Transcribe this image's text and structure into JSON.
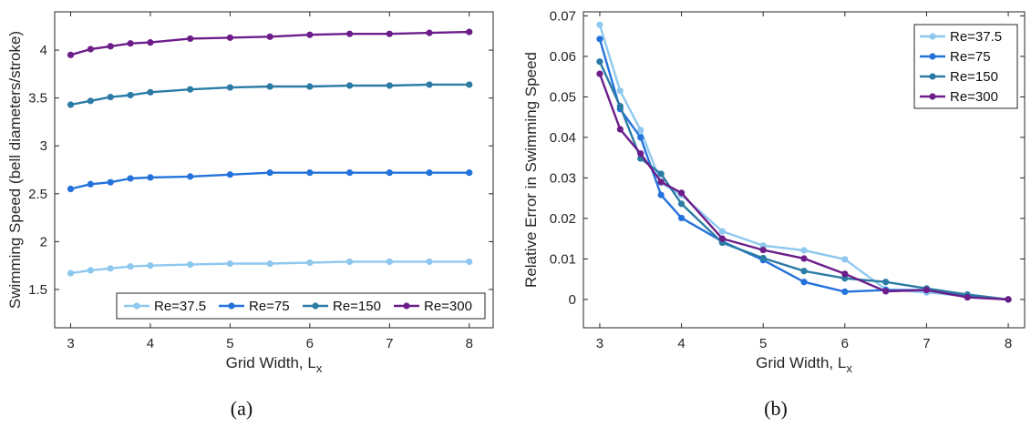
{
  "chart_data": [
    {
      "type": "line",
      "panel_label": "(a)",
      "xlabel": "Grid Width, L",
      "xlabel_sub": "x",
      "ylabel": "Swimming Speed (bell diameters/stroke)",
      "xlim": [
        2.8,
        8.3
      ],
      "ylim": [
        1.1,
        4.4
      ],
      "xticks": [
        3,
        4,
        5,
        6,
        7,
        8
      ],
      "yticks": [
        1.5,
        2,
        2.5,
        3,
        3.5,
        4
      ],
      "legend_position": "bottom",
      "x": [
        3,
        3.25,
        3.5,
        3.75,
        4,
        4.5,
        5,
        5.5,
        6,
        6.5,
        7,
        7.5,
        8
      ],
      "series": [
        {
          "name": "Re=37.5",
          "color": "#8ec8ef",
          "values": [
            1.67,
            1.7,
            1.72,
            1.74,
            1.75,
            1.76,
            1.77,
            1.77,
            1.78,
            1.79,
            1.79,
            1.79,
            1.79
          ]
        },
        {
          "name": "Re=75",
          "color": "#2472db",
          "values": [
            2.55,
            2.6,
            2.62,
            2.66,
            2.67,
            2.68,
            2.7,
            2.72,
            2.72,
            2.72,
            2.72,
            2.72,
            2.72
          ]
        },
        {
          "name": "Re=150",
          "color": "#2b7ba5",
          "values": [
            3.43,
            3.47,
            3.51,
            3.53,
            3.56,
            3.59,
            3.61,
            3.62,
            3.62,
            3.63,
            3.63,
            3.64,
            3.64
          ]
        },
        {
          "name": "Re=300",
          "color": "#6c1d8a",
          "values": [
            3.95,
            4.01,
            4.04,
            4.07,
            4.08,
            4.12,
            4.13,
            4.14,
            4.16,
            4.17,
            4.17,
            4.18,
            4.19
          ]
        }
      ]
    },
    {
      "type": "line",
      "panel_label": "(b)",
      "xlabel": "Grid Width, L",
      "xlabel_sub": "x",
      "ylabel": "Relative Error in Swimming Speed",
      "xlim": [
        2.8,
        8.2
      ],
      "ylim": [
        -0.007,
        0.071
      ],
      "xticks": [
        3,
        4,
        5,
        6,
        7,
        8
      ],
      "yticks": [
        0,
        0.01,
        0.02,
        0.03,
        0.04,
        0.05,
        0.06,
        0.07
      ],
      "legend_position": "top-right",
      "x": [
        3,
        3.25,
        3.5,
        3.75,
        4,
        4.5,
        5,
        5.5,
        6,
        6.5,
        7,
        7.5,
        8
      ],
      "series": [
        {
          "name": "Re=37.5",
          "color": "#8ec8ef",
          "values": [
            0.0678,
            0.0515,
            0.0418,
            0.0288,
            0.0258,
            0.0168,
            0.0133,
            0.0121,
            0.0099,
            0.0025,
            0.0017,
            0.0008,
            0
          ]
        },
        {
          "name": "Re=75",
          "color": "#2472db",
          "values": [
            0.0643,
            0.047,
            0.04,
            0.0258,
            0.0201,
            0.0143,
            0.0097,
            0.0043,
            0.0019,
            0.0023,
            0.0023,
            0.0008,
            0
          ]
        },
        {
          "name": "Re=150",
          "color": "#2b7ba5",
          "values": [
            0.0587,
            0.0477,
            0.0348,
            0.031,
            0.0236,
            0.014,
            0.0102,
            0.007,
            0.0052,
            0.0043,
            0.0027,
            0.0012,
            0
          ]
        },
        {
          "name": "Re=300",
          "color": "#6c1d8a",
          "values": [
            0.0557,
            0.042,
            0.036,
            0.029,
            0.0263,
            0.015,
            0.0122,
            0.0101,
            0.0063,
            0.002,
            0.0023,
            0.0005,
            0
          ]
        }
      ]
    }
  ]
}
